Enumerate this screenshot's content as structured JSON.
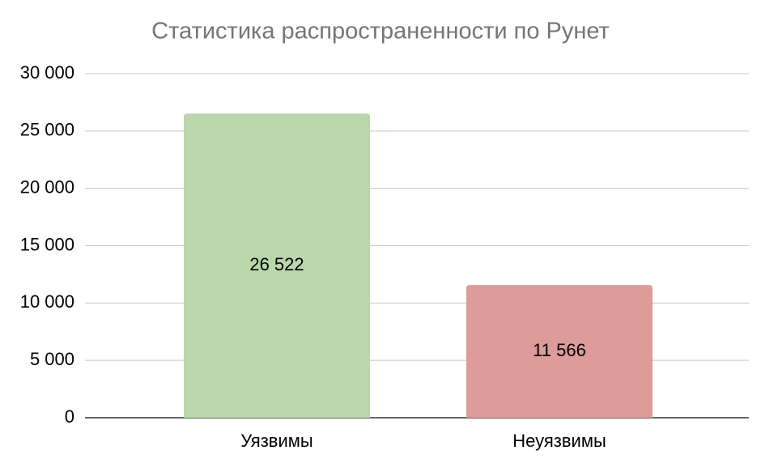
{
  "chart_data": {
    "type": "bar",
    "title": "Статистика распространенности по Рунет",
    "categories": [
      "Уязвимы",
      "Неуязвимы"
    ],
    "values": [
      26522,
      11566
    ],
    "value_labels": [
      "26 522",
      "11 566"
    ],
    "colors": [
      "#bad7ac",
      "#dd9b99"
    ],
    "ylim": [
      0,
      30000
    ],
    "yticks": [
      0,
      {
        "value": 5000,
        "label": "5 000"
      },
      {
        "value": 10000,
        "label": "10 000"
      },
      {
        "value": 15000,
        "label": "15 000"
      },
      {
        "value": 20000,
        "label": "20 000"
      },
      {
        "value": 25000,
        "label": "25 000"
      },
      {
        "value": 30000,
        "label": "30 000"
      }
    ],
    "grid": true
  }
}
